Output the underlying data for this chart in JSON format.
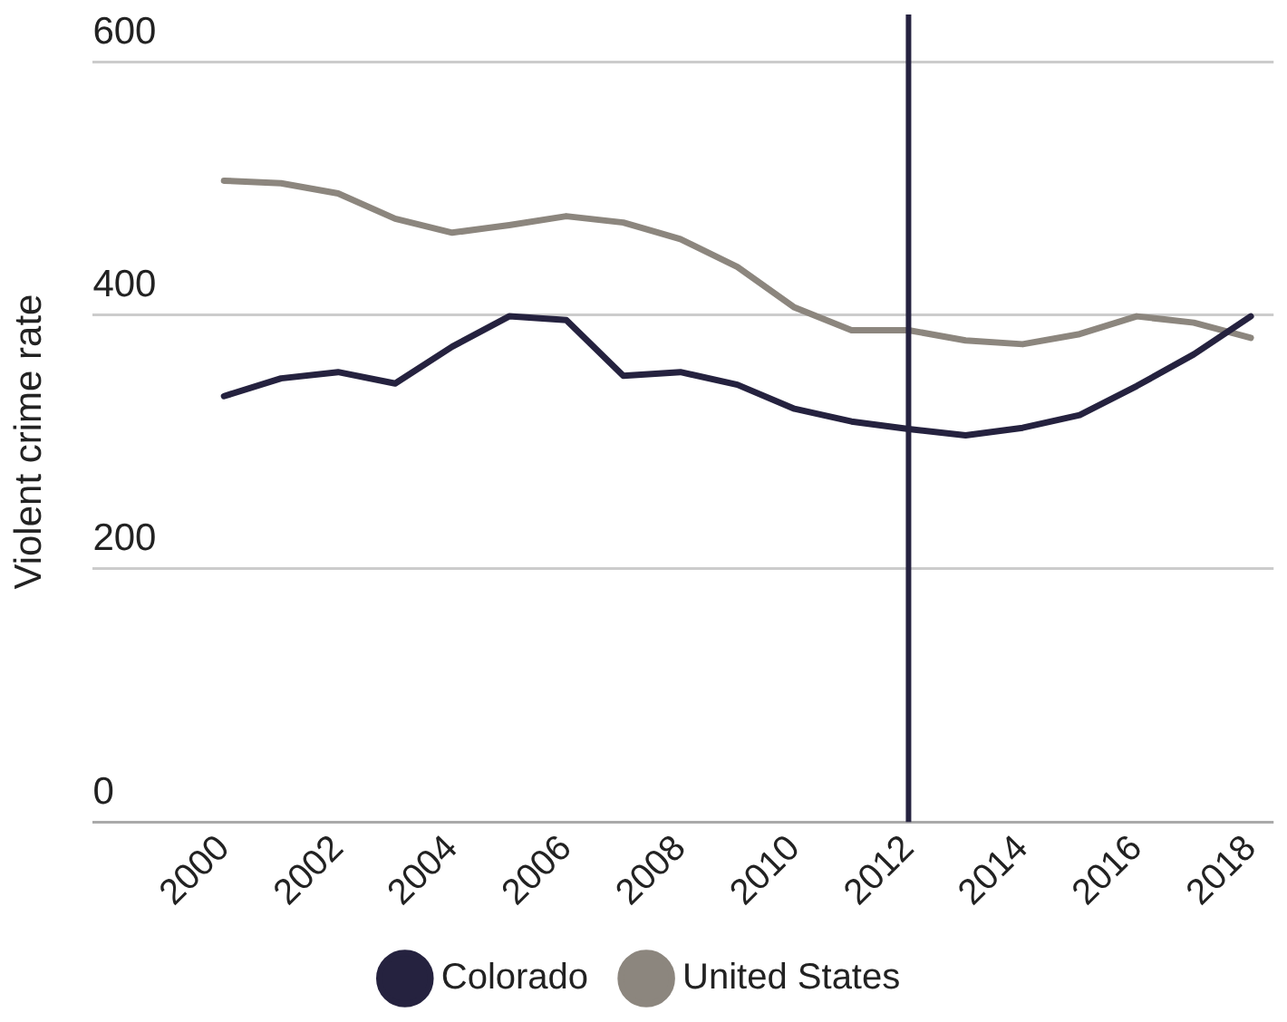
{
  "chart_data": {
    "type": "line",
    "ylabel": "Violent crime rate",
    "x": [
      2000,
      2001,
      2002,
      2003,
      2004,
      2005,
      2006,
      2007,
      2008,
      2009,
      2010,
      2011,
      2012,
      2013,
      2014,
      2015,
      2016,
      2017,
      2018
    ],
    "series": [
      {
        "name": "Colorado",
        "color": "#25223f",
        "values": [
          336,
          350,
          355,
          346,
          375,
          399,
          396,
          352,
          355,
          345,
          326,
          316,
          310,
          305,
          311,
          321,
          344,
          369,
          399
        ]
      },
      {
        "name": "United States",
        "color": "#8c867e",
        "values": [
          506,
          504,
          496,
          476,
          465,
          471,
          478,
          473,
          460,
          438,
          406,
          388,
          388,
          380,
          377,
          385,
          399,
          394,
          382
        ]
      }
    ],
    "xlim": [
      1997.7,
      2018.4
    ],
    "xticks": [
      2000,
      2002,
      2004,
      2006,
      2008,
      2010,
      2012,
      2014,
      2016,
      2018
    ],
    "ylim": [
      0,
      600
    ],
    "yticks": [
      0,
      200,
      400,
      600
    ],
    "ref_lines": [
      {
        "axis": "x",
        "value": 2012,
        "color": "#25223f"
      }
    ],
    "grid": "y",
    "legend": "bottom",
    "marker": "none",
    "line_style": "solid"
  }
}
